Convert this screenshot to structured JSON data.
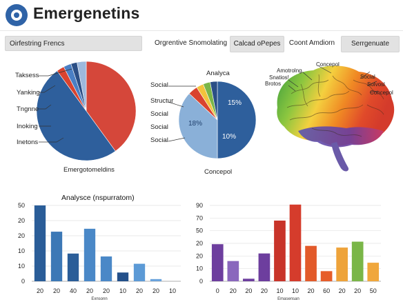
{
  "header": {
    "title": "Emergenetins"
  },
  "tabs": [
    {
      "label": "Oirfestring Frencs",
      "filled": true
    },
    {
      "label": "Orgrentive Snomolating",
      "filled": false
    },
    {
      "label": "Calcad oPepes",
      "filled": true
    },
    {
      "label": "Coont Amdiorn",
      "filled": false
    },
    {
      "label": "Serrgenuate",
      "filled": true
    }
  ],
  "pie_left": {
    "labels": [
      "Taksess",
      "Yanking",
      "Tngnne",
      "Inoking",
      "Inetons"
    ],
    "caption": "Emergotomeldins"
  },
  "pie_mid": {
    "title": "Analyca",
    "labels": [
      "Social",
      "Structur",
      "Social",
      "Social",
      "Social"
    ],
    "caption": "Concepol",
    "slice_texts": [
      "15%",
      "18%",
      "10%"
    ]
  },
  "brain": {
    "labels": [
      "Amotrolng",
      "Snatios!",
      "Brotos",
      "Concepol",
      "Social",
      "Solvosl",
      "Concepol"
    ]
  },
  "chart_data": [
    {
      "type": "pie",
      "slices": [
        {
          "value": 40,
          "color": "#d5473a"
        },
        {
          "value": 50,
          "color": "#2e5f9c"
        },
        {
          "value": 2.5,
          "color": "#d9432f"
        },
        {
          "value": 2.5,
          "color": "#4a7fc4"
        },
        {
          "value": 2,
          "color": "#2b4f86"
        },
        {
          "value": 3,
          "color": "#9db9dd"
        }
      ]
    },
    {
      "type": "pie",
      "slices": [
        {
          "value": 50,
          "color": "#2e5f9c"
        },
        {
          "value": 37,
          "color": "#8ab0d8"
        },
        {
          "value": 4,
          "color": "#d9432f"
        },
        {
          "value": 3,
          "color": "#f2c33c"
        },
        {
          "value": 3,
          "color": "#7ab648"
        },
        {
          "value": 3,
          "color": "#2b4f86"
        }
      ]
    },
    {
      "type": "bar",
      "title": "Analysce (nspurratom)",
      "xlabel": "Exnsonn",
      "ylim": [
        0,
        52
      ],
      "yticks": [
        "50",
        "20",
        "20",
        "10",
        "10",
        "0"
      ],
      "categories": [
        "20",
        "20",
        "40",
        "20",
        "20",
        "10",
        "20",
        "20",
        "10"
      ],
      "values": [
        52,
        34,
        19,
        36,
        17,
        6,
        12,
        1.5,
        0
      ],
      "colors": [
        "#2a5d98",
        "#3c78b6",
        "#2a5d98",
        "#4a88c7",
        "#4a88c7",
        "#23508a",
        "#5c9ad6",
        "#6aa3dc",
        "#6aa3dc"
      ]
    },
    {
      "type": "bar",
      "xlabel": "Emasensan",
      "ylim": [
        0,
        90
      ],
      "yticks": [
        "90",
        "70",
        "50",
        "20",
        "20",
        "10",
        "0"
      ],
      "categories": [
        "0",
        "20",
        "20",
        "20",
        "10",
        "10",
        "20",
        "60",
        "20",
        "20",
        "50"
      ],
      "values": [
        44,
        24,
        3,
        33,
        72,
        91,
        42,
        12,
        40,
        47,
        22
      ],
      "colors": [
        "#6d3e9e",
        "#8a67bd",
        "#6d3e9e",
        "#6d3e9e",
        "#c8342a",
        "#d53c2c",
        "#e25a2a",
        "#e65d2a",
        "#eea33a",
        "#7ab648",
        "#f0a73c"
      ]
    }
  ]
}
